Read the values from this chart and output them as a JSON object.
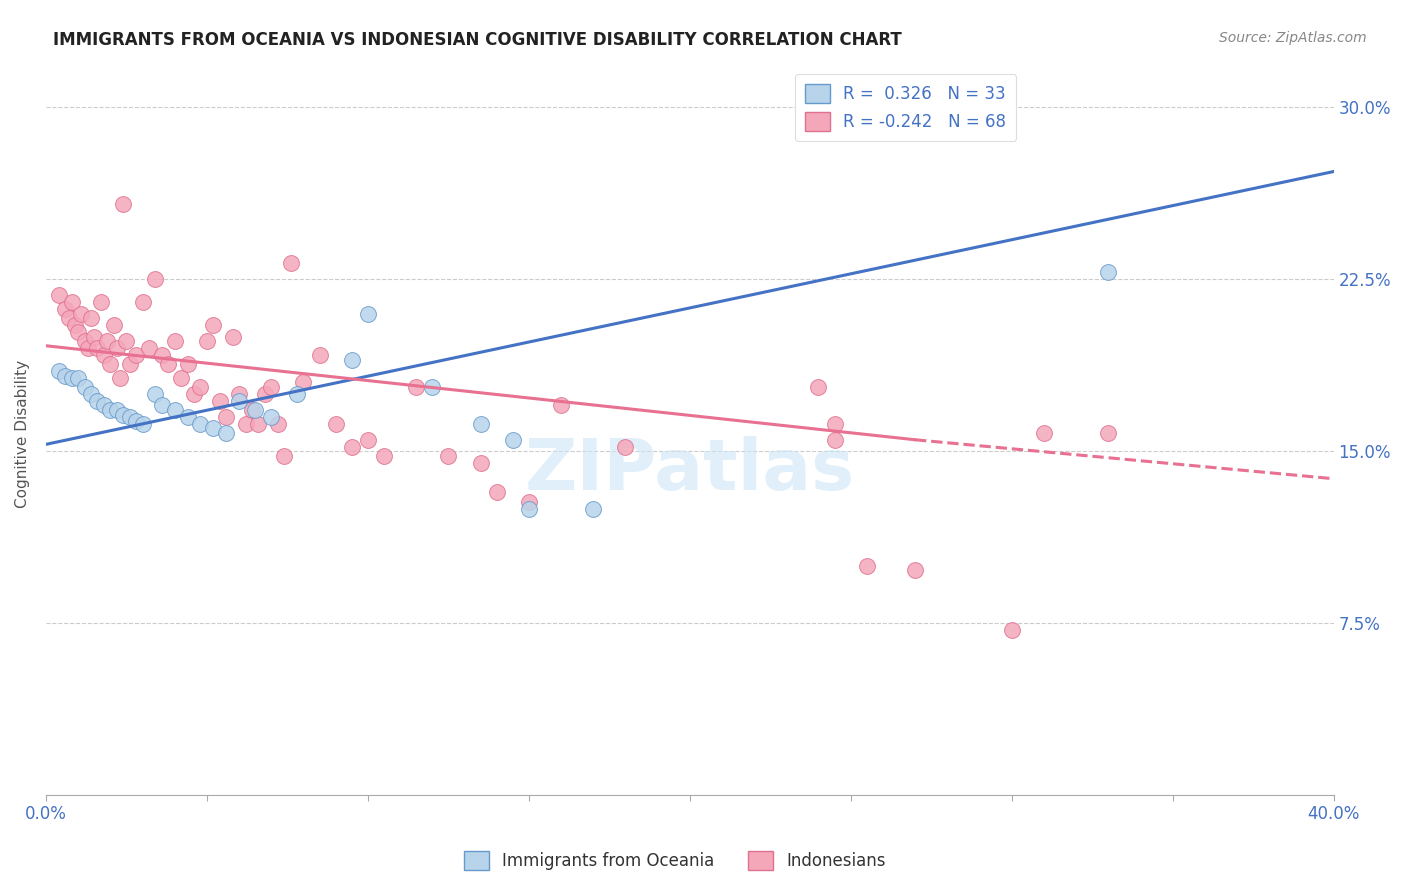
{
  "title": "IMMIGRANTS FROM OCEANIA VS INDONESIAN COGNITIVE DISABILITY CORRELATION CHART",
  "source": "Source: ZipAtlas.com",
  "ylabel": "Cognitive Disability",
  "ytick_labels": [
    "",
    "7.5%",
    "15.0%",
    "22.5%",
    "30.0%"
  ],
  "ytick_values": [
    0.0,
    0.075,
    0.15,
    0.225,
    0.3
  ],
  "xmin": 0.0,
  "xmax": 0.4,
  "ymin": 0.0,
  "ymax": 0.315,
  "color_blue": "#b8d4ea",
  "color_pink": "#f4a7b9",
  "edge_blue": "#6699cc",
  "edge_pink": "#e07090",
  "line_blue_color": "#4472c4",
  "line_pink_color": "#e87090",
  "scatter_blue": [
    [
      0.004,
      0.185
    ],
    [
      0.006,
      0.183
    ],
    [
      0.008,
      0.182
    ],
    [
      0.01,
      0.182
    ],
    [
      0.012,
      0.178
    ],
    [
      0.014,
      0.175
    ],
    [
      0.016,
      0.172
    ],
    [
      0.018,
      0.17
    ],
    [
      0.02,
      0.168
    ],
    [
      0.022,
      0.168
    ],
    [
      0.024,
      0.166
    ],
    [
      0.026,
      0.165
    ],
    [
      0.028,
      0.163
    ],
    [
      0.03,
      0.162
    ],
    [
      0.034,
      0.175
    ],
    [
      0.036,
      0.17
    ],
    [
      0.04,
      0.168
    ],
    [
      0.044,
      0.165
    ],
    [
      0.048,
      0.162
    ],
    [
      0.052,
      0.16
    ],
    [
      0.056,
      0.158
    ],
    [
      0.06,
      0.172
    ],
    [
      0.065,
      0.168
    ],
    [
      0.07,
      0.165
    ],
    [
      0.078,
      0.175
    ],
    [
      0.095,
      0.19
    ],
    [
      0.1,
      0.21
    ],
    [
      0.12,
      0.178
    ],
    [
      0.135,
      0.162
    ],
    [
      0.145,
      0.155
    ],
    [
      0.15,
      0.125
    ],
    [
      0.17,
      0.125
    ],
    [
      0.33,
      0.228
    ]
  ],
  "scatter_pink": [
    [
      0.004,
      0.218
    ],
    [
      0.006,
      0.212
    ],
    [
      0.007,
      0.208
    ],
    [
      0.008,
      0.215
    ],
    [
      0.009,
      0.205
    ],
    [
      0.01,
      0.202
    ],
    [
      0.011,
      0.21
    ],
    [
      0.012,
      0.198
    ],
    [
      0.013,
      0.195
    ],
    [
      0.014,
      0.208
    ],
    [
      0.015,
      0.2
    ],
    [
      0.016,
      0.195
    ],
    [
      0.017,
      0.215
    ],
    [
      0.018,
      0.192
    ],
    [
      0.019,
      0.198
    ],
    [
      0.02,
      0.188
    ],
    [
      0.021,
      0.205
    ],
    [
      0.022,
      0.195
    ],
    [
      0.023,
      0.182
    ],
    [
      0.024,
      0.258
    ],
    [
      0.025,
      0.198
    ],
    [
      0.026,
      0.188
    ],
    [
      0.028,
      0.192
    ],
    [
      0.03,
      0.215
    ],
    [
      0.032,
      0.195
    ],
    [
      0.034,
      0.225
    ],
    [
      0.036,
      0.192
    ],
    [
      0.038,
      0.188
    ],
    [
      0.04,
      0.198
    ],
    [
      0.042,
      0.182
    ],
    [
      0.044,
      0.188
    ],
    [
      0.046,
      0.175
    ],
    [
      0.048,
      0.178
    ],
    [
      0.05,
      0.198
    ],
    [
      0.052,
      0.205
    ],
    [
      0.054,
      0.172
    ],
    [
      0.056,
      0.165
    ],
    [
      0.058,
      0.2
    ],
    [
      0.06,
      0.175
    ],
    [
      0.062,
      0.162
    ],
    [
      0.064,
      0.168
    ],
    [
      0.066,
      0.162
    ],
    [
      0.068,
      0.175
    ],
    [
      0.07,
      0.178
    ],
    [
      0.072,
      0.162
    ],
    [
      0.074,
      0.148
    ],
    [
      0.076,
      0.232
    ],
    [
      0.08,
      0.18
    ],
    [
      0.085,
      0.192
    ],
    [
      0.09,
      0.162
    ],
    [
      0.095,
      0.152
    ],
    [
      0.1,
      0.155
    ],
    [
      0.105,
      0.148
    ],
    [
      0.115,
      0.178
    ],
    [
      0.125,
      0.148
    ],
    [
      0.135,
      0.145
    ],
    [
      0.14,
      0.132
    ],
    [
      0.15,
      0.128
    ],
    [
      0.16,
      0.17
    ],
    [
      0.18,
      0.152
    ],
    [
      0.24,
      0.178
    ],
    [
      0.245,
      0.162
    ],
    [
      0.27,
      0.098
    ],
    [
      0.3,
      0.072
    ],
    [
      0.31,
      0.158
    ],
    [
      0.33,
      0.158
    ],
    [
      0.255,
      0.1
    ],
    [
      0.245,
      0.155
    ]
  ],
  "blue_line": [
    [
      0.0,
      0.153
    ],
    [
      0.4,
      0.272
    ]
  ],
  "pink_line_solid": [
    [
      0.0,
      0.196
    ],
    [
      0.27,
      0.155
    ]
  ],
  "pink_line_dash": [
    [
      0.27,
      0.155
    ],
    [
      0.4,
      0.138
    ]
  ]
}
